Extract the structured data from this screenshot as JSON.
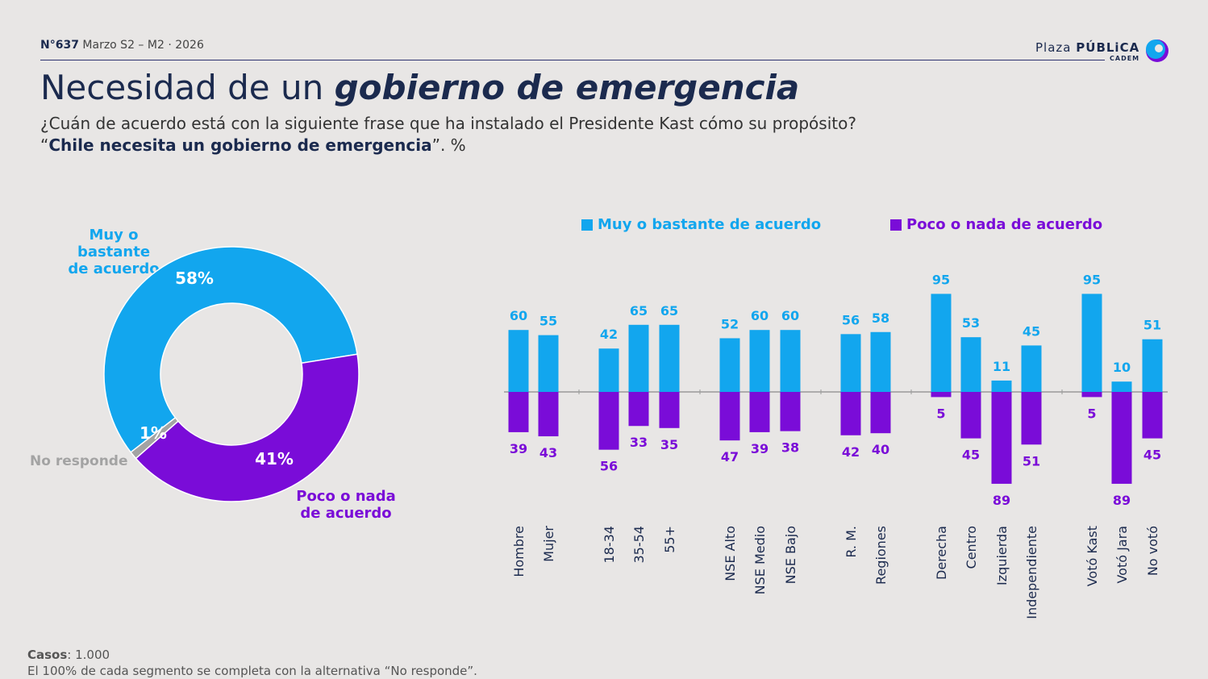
{
  "header": {
    "issue_number": "N°637",
    "issue_period": "Marzo S2 – M2 · 2026",
    "logo_text_light": "Plaza",
    "logo_text_bold": "PÚBLiCA",
    "logo_sub": "CADEM"
  },
  "title": {
    "plain": "Necesidad de un ",
    "emphasis": "gobierno de emergencia"
  },
  "question": {
    "line1": "¿Cuán de acuerdo está con la siguiente frase que ha instalado el Presidente Kast cómo su propósito?",
    "line2_open": "“",
    "line2_bold": "Chile necesita un gobierno de emergencia",
    "line2_close": "”. %"
  },
  "colors": {
    "agree": "#12a6ee",
    "disagree": "#7a0cd8",
    "no_answer": "#a3a3a3",
    "navy": "#1b2a4e"
  },
  "chart_data": [
    {
      "type": "pie",
      "donut": true,
      "slices": [
        {
          "name": "Muy o bastante de acuerdo",
          "value": 58,
          "label": "58%"
        },
        {
          "name": "Poco o nada de acuerdo",
          "value": 41,
          "label": "41%"
        },
        {
          "name": "No responde",
          "value": 1,
          "label": "1%"
        }
      ],
      "labels": {
        "agree_line1": "Muy o bastante",
        "agree_line2": "de acuerdo",
        "disagree_line1": "Poco o nada",
        "disagree_line2": "de acuerdo",
        "no_answer": "No responde"
      }
    },
    {
      "type": "bar",
      "diverging": true,
      "legend": [
        "Muy o bastante de acuerdo",
        "Poco o nada de acuerdo"
      ],
      "legend_position": "top",
      "groups": [
        [
          "Hombre",
          "Mujer"
        ],
        [
          "18-34",
          "35-54",
          "55+"
        ],
        [
          "NSE Alto",
          "NSE Medio",
          "NSE Bajo"
        ],
        [
          "R. M.",
          "Regiones"
        ],
        [
          "Derecha",
          "Centro",
          "Izquierda",
          "Independiente"
        ],
        [
          "Votó Kast",
          "Votó Jara",
          "No votó"
        ]
      ],
      "categories": [
        "Hombre",
        "Mujer",
        "18-34",
        "35-54",
        "55+",
        "NSE Alto",
        "NSE Medio",
        "NSE Bajo",
        "R. M.",
        "Regiones",
        "Derecha",
        "Centro",
        "Izquierda",
        "Independiente",
        "Votó Kast",
        "Votó Jara",
        "No votó"
      ],
      "series": [
        {
          "name": "Muy o bastante de acuerdo",
          "values": [
            60,
            55,
            42,
            65,
            65,
            52,
            60,
            60,
            56,
            58,
            95,
            53,
            11,
            45,
            95,
            10,
            51
          ]
        },
        {
          "name": "Poco o nada de acuerdo",
          "values": [
            39,
            43,
            56,
            33,
            35,
            47,
            39,
            38,
            42,
            40,
            5,
            45,
            89,
            51,
            5,
            89,
            45
          ]
        }
      ]
    }
  ],
  "footer": {
    "cases_label": "Casos",
    "cases_value": ": 1.000",
    "note": "El 100% de cada segmento se completa con la alternativa “No responde”."
  }
}
